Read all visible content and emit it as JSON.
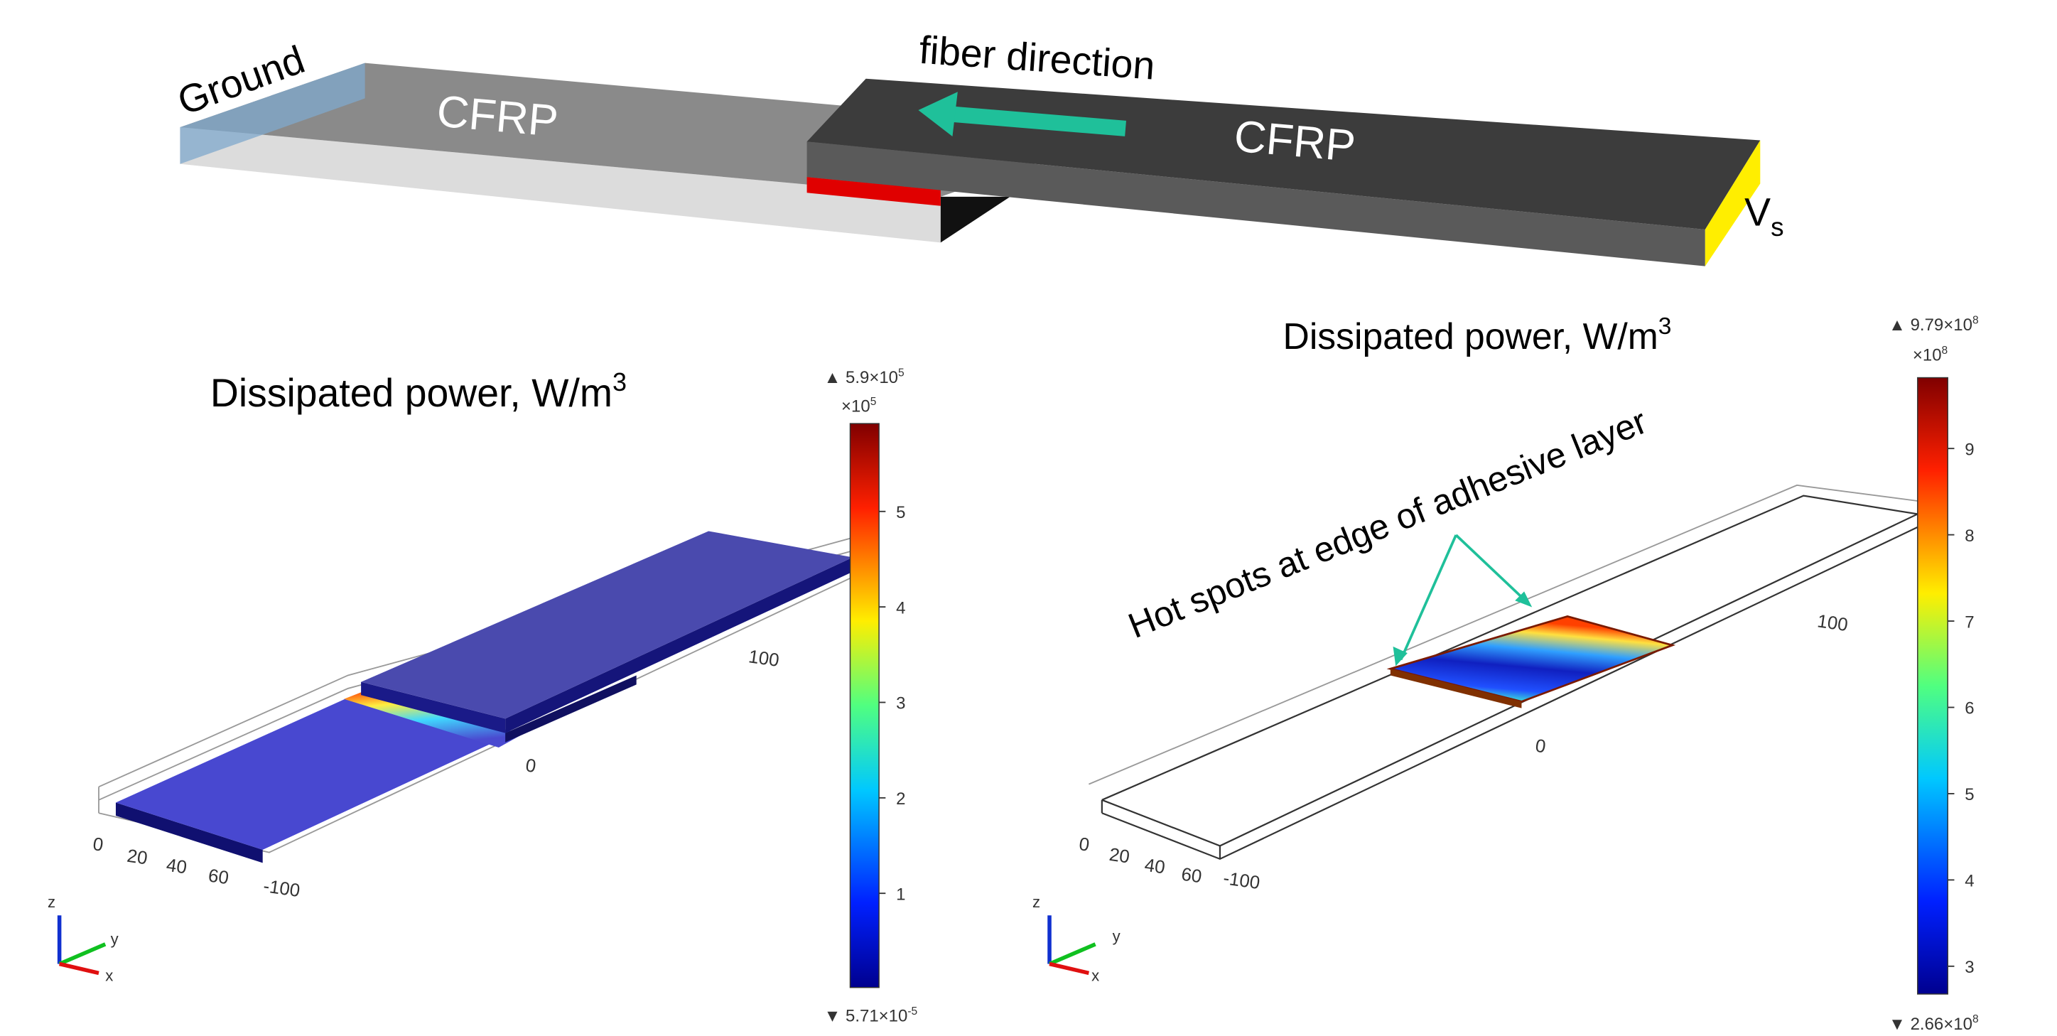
{
  "schematic": {
    "ground": "Ground",
    "cfrp_left": "CFRP",
    "fiber_direction": "fiber direction",
    "cfrp_right": "CFRP",
    "voltage": "V",
    "voltage_subscript": "s"
  },
  "plots": [
    {
      "title": "Dissipated power, W/m",
      "title_superscript": "3",
      "max_label": "▲ 5.9×10",
      "max_exponent": "5",
      "multiplier": "×10",
      "multiplier_exponent": "5",
      "colorbar_ticks": [
        "5",
        "4",
        "3",
        "2",
        "1"
      ],
      "min_label": "▼ 5.71×10",
      "min_exponent": "-5",
      "axis_labels": [
        "0",
        "20",
        "40",
        "60",
        "-100",
        "0",
        "100"
      ],
      "triad": [
        "z",
        "y",
        "x"
      ]
    },
    {
      "title": "Dissipated power, W/m",
      "title_superscript": "3",
      "max_label": "▲ 9.79×10",
      "max_exponent": "8",
      "multiplier": "×10",
      "multiplier_exponent": "8",
      "colorbar_ticks": [
        "9",
        "8",
        "7",
        "6",
        "5",
        "4",
        "3"
      ],
      "min_label": "▼ 2.66×10",
      "min_exponent": "8",
      "axis_labels": [
        "0",
        "20",
        "40",
        "60",
        "-100",
        "0",
        "100"
      ],
      "triad": [
        "z",
        "y",
        "x"
      ],
      "annotation": "Hot spots at edge of adhesive layer"
    }
  ]
}
